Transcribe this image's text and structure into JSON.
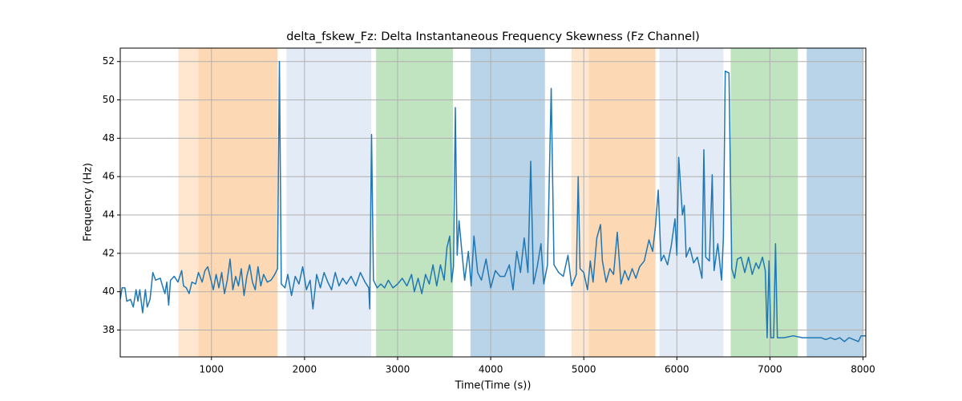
{
  "chart_data": {
    "type": "line",
    "title": "delta_fskew_Fz: Delta Instantaneous Frequency Skewness (Fz Channel)",
    "x_label": "Time(Time (s))",
    "y_label": "Frequency (Hz)",
    "color": "#1f77b4",
    "grid": true,
    "xlim": [
      20,
      8030
    ],
    "ylim": [
      36.6,
      52.7
    ],
    "xticks": [
      1000,
      2000,
      3000,
      4000,
      5000,
      6000,
      7000,
      8000
    ],
    "yticks": [
      38,
      40,
      42,
      44,
      46,
      48,
      50,
      52
    ],
    "spans": [
      {
        "x0": 645,
        "x1": 1710,
        "color": "#ffe6cf"
      },
      {
        "x0": 860,
        "x1": 1710,
        "color": "#fdd8b5"
      },
      {
        "x0": 1805,
        "x1": 2717,
        "color": "#e3ebf6"
      },
      {
        "x0": 2769,
        "x1": 3594,
        "color": "#c0e3c0"
      },
      {
        "x0": 3783,
        "x1": 4583,
        "color": "#b9d4e8"
      },
      {
        "x0": 4867,
        "x1": 5770,
        "color": "#ffe6cf"
      },
      {
        "x0": 5056,
        "x1": 5770,
        "color": "#fdd8b5"
      },
      {
        "x0": 5813,
        "x1": 6500,
        "color": "#e3ebf6"
      },
      {
        "x0": 6578,
        "x1": 7300,
        "color": "#c0e3c0"
      },
      {
        "x0": 7395,
        "x1": 8005,
        "color": "#b9d4e8"
      }
    ],
    "x": [
      20,
      40,
      70,
      90,
      130,
      160,
      190,
      210,
      230,
      260,
      290,
      310,
      340,
      370,
      400,
      450,
      480,
      500,
      520,
      540,
      560,
      600,
      640,
      680,
      700,
      730,
      760,
      790,
      830,
      860,
      900,
      930,
      960,
      1000,
      1020,
      1050,
      1080,
      1110,
      1140,
      1170,
      1200,
      1230,
      1260,
      1290,
      1320,
      1350,
      1380,
      1410,
      1440,
      1470,
      1500,
      1530,
      1560,
      1600,
      1640,
      1680,
      1710,
      1730,
      1750,
      1790,
      1820,
      1860,
      1900,
      1940,
      1980,
      2020,
      2060,
      2090,
      2130,
      2170,
      2210,
      2250,
      2290,
      2330,
      2370,
      2410,
      2450,
      2500,
      2550,
      2600,
      2650,
      2690,
      2700,
      2720,
      2740,
      2780,
      2820,
      2860,
      2900,
      2950,
      3000,
      3050,
      3100,
      3150,
      3180,
      3220,
      3260,
      3300,
      3340,
      3380,
      3420,
      3460,
      3500,
      3530,
      3560,
      3580,
      3600,
      3620,
      3640,
      3660,
      3690,
      3720,
      3760,
      3790,
      3820,
      3860,
      3900,
      3950,
      4000,
      4050,
      4100,
      4150,
      4200,
      4240,
      4280,
      4320,
      4360,
      4400,
      4430,
      4460,
      4500,
      4540,
      4570,
      4610,
      4650,
      4680,
      4730,
      4780,
      4830,
      4870,
      4920,
      4940,
      4960,
      5000,
      5040,
      5070,
      5100,
      5140,
      5180,
      5200,
      5240,
      5280,
      5320,
      5360,
      5400,
      5440,
      5480,
      5520,
      5560,
      5600,
      5650,
      5700,
      5740,
      5770,
      5800,
      5830,
      5860,
      5900,
      5940,
      5980,
      6000,
      6020,
      6060,
      6080,
      6100,
      6140,
      6180,
      6220,
      6270,
      6290,
      6310,
      6350,
      6380,
      6400,
      6440,
      6480,
      6500,
      6520,
      6560,
      6590,
      6620,
      6650,
      6690,
      6730,
      6770,
      6810,
      6850,
      6880,
      6920,
      6950,
      6970,
      6990,
      7010,
      7040,
      7060,
      7080,
      7150,
      7250,
      7350,
      7450,
      7550,
      7600,
      7650,
      7700,
      7750,
      7800,
      7850,
      7900,
      7950,
      7980,
      8030
    ],
    "values": [
      39.6,
      40.2,
      40.2,
      39.5,
      39.6,
      39.2,
      40.1,
      39.5,
      40.1,
      38.9,
      40.1,
      39.2,
      39.6,
      41.0,
      40.6,
      40.7,
      40.2,
      39.9,
      40.5,
      39.3,
      40.6,
      40.8,
      40.5,
      41.1,
      40.3,
      40.2,
      39.9,
      40.5,
      40.4,
      41.0,
      40.5,
      41.1,
      41.3,
      40.5,
      40.1,
      40.9,
      40.2,
      41.0,
      39.9,
      40.6,
      41.7,
      40.1,
      40.8,
      40.3,
      41.2,
      39.8,
      40.8,
      41.4,
      40.5,
      40.1,
      41.3,
      40.3,
      40.9,
      40.5,
      40.6,
      40.9,
      41.2,
      52.0,
      40.4,
      40.2,
      40.9,
      39.8,
      40.8,
      40.4,
      41.3,
      40.1,
      40.6,
      39.1,
      40.9,
      40.2,
      41.0,
      40.5,
      40.1,
      41.0,
      40.3,
      40.7,
      40.4,
      40.8,
      40.3,
      41.0,
      40.5,
      40.2,
      39.1,
      48.2,
      40.6,
      40.2,
      40.4,
      40.2,
      40.6,
      40.2,
      40.4,
      40.7,
      40.3,
      40.9,
      40.0,
      40.7,
      39.9,
      40.9,
      40.4,
      41.4,
      40.3,
      41.4,
      40.6,
      42.3,
      42.9,
      40.5,
      41.3,
      49.6,
      41.9,
      43.7,
      42.1,
      40.6,
      42.1,
      40.3,
      42.9,
      41.0,
      40.6,
      41.7,
      40.2,
      41.1,
      40.8,
      40.8,
      41.4,
      40.1,
      42.1,
      41.0,
      42.8,
      41.0,
      46.8,
      40.4,
      41.3,
      42.5,
      40.4,
      41.4,
      50.6,
      41.4,
      41.0,
      40.8,
      41.9,
      40.3,
      40.9,
      46.0,
      41.2,
      41.0,
      40.1,
      41.6,
      40.5,
      42.8,
      43.5,
      41.6,
      40.5,
      41.2,
      40.9,
      43.1,
      40.4,
      41.1,
      40.6,
      41.2,
      40.7,
      41.3,
      41.6,
      42.7,
      42.1,
      43.4,
      45.3,
      41.6,
      41.9,
      41.4,
      42.4,
      43.8,
      41.9,
      47.0,
      44.0,
      44.5,
      41.8,
      42.3,
      41.5,
      41.8,
      40.7,
      47.4,
      41.8,
      41.6,
      46.1,
      41.1,
      42.5,
      40.6,
      42.8,
      51.5,
      51.4,
      41.2,
      40.7,
      41.7,
      41.8,
      41.0,
      41.8,
      40.9,
      41.5,
      41.2,
      41.8,
      41.1,
      37.6,
      41.6,
      37.6,
      37.6,
      42.5,
      37.6,
      37.6,
      37.7,
      37.6,
      37.6,
      37.6,
      37.5,
      37.6,
      37.5,
      37.6,
      37.4,
      37.6,
      37.5,
      37.4,
      37.7,
      37.7
    ]
  }
}
